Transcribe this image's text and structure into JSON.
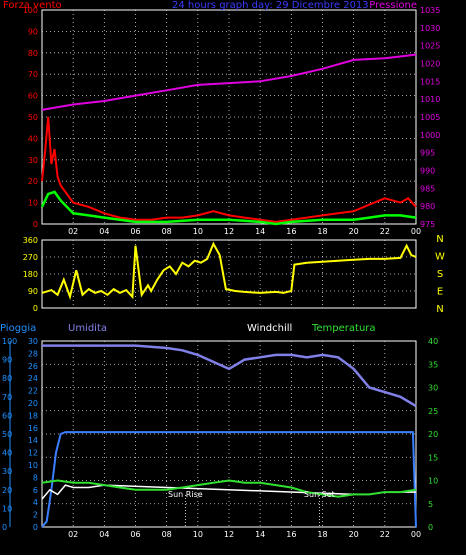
{
  "colors": {
    "background": "#000000",
    "grid": "#d8d8d8",
    "wind": "#ff0000",
    "wind_avg": "#00ff00",
    "pressure": "#e000e0",
    "direction": "#ffff00",
    "rain_axis": "#1e90ff",
    "rain": "#3a7fff",
    "humidity": "#8080e8",
    "temperature": "#30e030",
    "windchill": "#ffffff",
    "title": "#3a3aff",
    "tick_labels": "#ffffff"
  },
  "chart_data": [
    {
      "type": "line",
      "id": "wind-pressure",
      "title": "24 hours graph day: 29 Dicembre 2013",
      "left_label": "Forza vento",
      "right_label": "Pressione",
      "x_ticks": [
        "02",
        "04",
        "06",
        "08",
        "10",
        "12",
        "14",
        "16",
        "18",
        "20",
        "22",
        "00"
      ],
      "y_left_ticks": [
        "0",
        "10",
        "20",
        "30",
        "40",
        "50",
        "60",
        "70",
        "80",
        "90",
        "100"
      ],
      "y_right_ticks": [
        "975",
        "980",
        "985",
        "990",
        "995",
        "1000",
        "1005",
        "1010",
        "1015",
        "1020",
        "1025",
        "1030",
        "1035"
      ],
      "ylim_left": [
        0,
        100
      ],
      "ylim_right": [
        975,
        1035
      ],
      "grid": true,
      "series": [
        {
          "key": "wind_gust",
          "axis": "left",
          "x": [
            0,
            0.2,
            0.4,
            0.6,
            0.8,
            1.0,
            1.2,
            1.6,
            2.0,
            3,
            4,
            5,
            6,
            7,
            8,
            9,
            10,
            11,
            12,
            13,
            14,
            15,
            16,
            17,
            18,
            19,
            20,
            21,
            22,
            23,
            23.5,
            24
          ],
          "y": [
            20,
            34,
            50,
            28,
            35,
            22,
            18,
            14,
            10,
            8,
            5,
            3,
            2,
            2,
            3,
            3,
            4,
            6,
            4,
            3,
            2,
            1,
            2,
            3,
            4,
            5,
            6,
            9,
            12,
            10,
            12,
            8
          ]
        },
        {
          "key": "wind_avg",
          "axis": "left",
          "x": [
            0,
            0.4,
            0.8,
            1.2,
            1.6,
            2.0,
            3,
            4,
            5,
            6,
            8,
            10,
            12,
            14,
            15,
            16,
            18,
            20,
            21,
            22,
            23,
            24
          ],
          "y": [
            8,
            14,
            15,
            11,
            8,
            5,
            4,
            3,
            2,
            1,
            1,
            2,
            2,
            1,
            0,
            1,
            2,
            2,
            3,
            4,
            4,
            3
          ]
        },
        {
          "key": "pressure",
          "axis": "right",
          "x": [
            0,
            2,
            4,
            6,
            8,
            10,
            12,
            14,
            16,
            18,
            20,
            22,
            24
          ],
          "y": [
            1007,
            1008.5,
            1009.5,
            1011,
            1012.5,
            1014,
            1014.5,
            1015,
            1016.5,
            1018.5,
            1021,
            1021.5,
            1022.5
          ]
        }
      ]
    },
    {
      "type": "line",
      "id": "wind-direction",
      "y_ticks": [
        "0",
        "90",
        "180",
        "270",
        "360"
      ],
      "right_labels": [
        "N",
        "W",
        "S",
        "E",
        "N"
      ],
      "ylim": [
        0,
        360
      ],
      "grid": true,
      "series": [
        {
          "key": "direction",
          "x": [
            0,
            0.6,
            1.0,
            1.4,
            1.8,
            2.2,
            2.6,
            3.0,
            3.4,
            3.8,
            4.2,
            4.6,
            5.0,
            5.4,
            5.8,
            6.0,
            6.4,
            6.8,
            7.0,
            7.4,
            7.8,
            8.2,
            8.6,
            9.0,
            9.4,
            9.8,
            10.2,
            10.6,
            11.0,
            11.4,
            11.8,
            12.4,
            13.0,
            14.0,
            15.0,
            15.5,
            16.0,
            16.2,
            17,
            18,
            19,
            20,
            21,
            22,
            23,
            23.4,
            23.7,
            24
          ],
          "y": [
            80,
            95,
            70,
            150,
            60,
            200,
            70,
            100,
            80,
            90,
            70,
            100,
            80,
            95,
            60,
            330,
            70,
            120,
            90,
            150,
            200,
            220,
            180,
            240,
            220,
            250,
            240,
            260,
            340,
            280,
            100,
            90,
            85,
            80,
            85,
            80,
            90,
            230,
            240,
            245,
            250,
            255,
            260,
            260,
            265,
            330,
            280,
            270
          ]
        }
      ]
    },
    {
      "type": "line",
      "id": "rain-humidity-temperature",
      "left_label": "Pioggia",
      "humidity_label": "Umidita",
      "windchill_label": "Windchill",
      "temp_label": "Temperatura",
      "x_ticks": [
        "02",
        "04",
        "06",
        "08",
        "10",
        "12",
        "14",
        "16",
        "18",
        "20",
        "22",
        "00"
      ],
      "y_rain_ticks": [
        "0",
        "10",
        "20",
        "30",
        "40",
        "50",
        "60",
        "70",
        "80",
        "90",
        "100"
      ],
      "y_temp_ticks": [
        "0",
        "2",
        "4",
        "6",
        "8",
        "10",
        "12",
        "14",
        "16",
        "18",
        "20",
        "22",
        "24",
        "26",
        "28",
        "30"
      ],
      "y_right_ticks": [
        "0",
        "5",
        "10",
        "15",
        "20",
        "25",
        "30",
        "35",
        "40"
      ],
      "ylim_rain": [
        0,
        100
      ],
      "ylim_right": [
        0,
        40
      ],
      "grid": true,
      "annotations": [
        {
          "label": "Sun Rise",
          "x": 9.2
        },
        {
          "label": "Sun Set",
          "x": 17.8
        }
      ],
      "series": [
        {
          "key": "rain",
          "axis": "rain",
          "x": [
            0,
            0.3,
            0.6,
            0.9,
            1.2,
            1.5,
            23.6,
            23.8,
            24
          ],
          "y": [
            0,
            3,
            20,
            40,
            50,
            51,
            51,
            51,
            0
          ]
        },
        {
          "key": "humidity",
          "axis": "right",
          "x": [
            0,
            2,
            4,
            6,
            8,
            9,
            10,
            11,
            12,
            12.5,
            13,
            14,
            15,
            16,
            17,
            18,
            19,
            20,
            21,
            22,
            23,
            24
          ],
          "y": [
            39,
            39,
            39,
            39,
            38.5,
            38,
            37,
            35.5,
            34,
            35,
            36,
            36.5,
            37,
            37,
            36.5,
            37,
            36.5,
            34,
            30,
            29,
            28,
            26
          ]
        },
        {
          "key": "temperature",
          "axis": "right",
          "x": [
            0,
            1,
            2,
            3,
            4,
            5,
            6,
            7,
            8,
            9,
            10,
            11,
            12,
            13,
            14,
            15,
            16,
            17,
            18,
            19,
            20,
            21,
            22,
            23,
            24
          ],
          "y": [
            9.5,
            10,
            9.5,
            9.5,
            9,
            8.5,
            8,
            8,
            8,
            8.5,
            9,
            9.5,
            10,
            9.5,
            9.5,
            9,
            8.5,
            7.5,
            7,
            6.5,
            7,
            7,
            7.5,
            7.5,
            8
          ]
        },
        {
          "key": "windchill",
          "axis": "right",
          "x": [
            0,
            0.5,
            1,
            1.5,
            2,
            3,
            4,
            20,
            21,
            22,
            23,
            24
          ],
          "y": [
            6,
            8,
            7,
            9,
            8.5,
            8.5,
            9,
            7,
            7,
            7.5,
            7.5,
            7.5
          ]
        }
      ]
    }
  ]
}
